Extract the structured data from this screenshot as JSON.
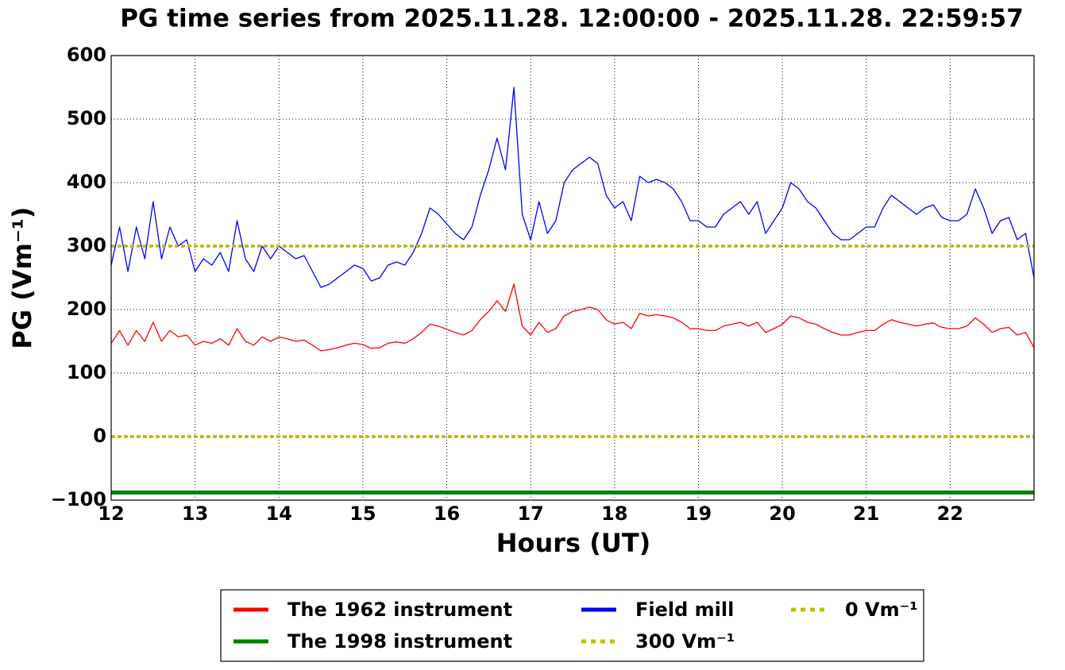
{
  "chart_data": {
    "type": "line",
    "title": "PG time series from 2025.11.28. 12:00:00 - 2025.11.28. 22:59:57",
    "xlabel": "Hours (UT)",
    "ylabel": "PG (Vm⁻¹)",
    "xlim": [
      12,
      23
    ],
    "ylim": [
      -100,
      600
    ],
    "xticks": [
      12,
      13,
      14,
      15,
      16,
      17,
      18,
      19,
      20,
      21,
      22
    ],
    "yticks": [
      {
        "value": -100,
        "label": "−100"
      },
      0,
      100,
      200,
      300,
      400,
      500,
      600
    ],
    "grid": true,
    "legend": "lower center",
    "x": [
      12.0,
      12.1,
      12.2,
      12.3,
      12.4,
      12.5,
      12.6,
      12.7,
      12.8,
      12.9,
      13.0,
      13.1,
      13.2,
      13.3,
      13.4,
      13.5,
      13.6,
      13.7,
      13.8,
      13.9,
      14.0,
      14.1,
      14.2,
      14.3,
      14.4,
      14.5,
      14.6,
      14.7,
      14.8,
      14.9,
      15.0,
      15.1,
      15.2,
      15.3,
      15.4,
      15.5,
      15.6,
      15.7,
      15.8,
      15.9,
      16.0,
      16.1,
      16.2,
      16.3,
      16.4,
      16.5,
      16.6,
      16.7,
      16.8,
      16.9,
      17.0,
      17.1,
      17.2,
      17.3,
      17.4,
      17.5,
      17.6,
      17.7,
      17.8,
      17.9,
      18.0,
      18.1,
      18.2,
      18.3,
      18.4,
      18.5,
      18.6,
      18.7,
      18.8,
      18.9,
      19.0,
      19.1,
      19.2,
      19.3,
      19.4,
      19.5,
      19.6,
      19.7,
      19.8,
      19.9,
      20.0,
      20.1,
      20.2,
      20.3,
      20.4,
      20.5,
      20.6,
      20.7,
      20.8,
      20.9,
      21.0,
      21.1,
      21.2,
      21.3,
      21.4,
      21.5,
      21.6,
      21.7,
      21.8,
      21.9,
      22.0,
      22.1,
      22.2,
      22.3,
      22.4,
      22.5,
      22.6,
      22.7,
      22.8,
      22.9,
      23.0
    ],
    "series": [
      {
        "name": "The 1962 instrument",
        "color": "#ff0000",
        "values": [
          147,
          167,
          144,
          167,
          150,
          180,
          150,
          167,
          157,
          160,
          144,
          150,
          147,
          154,
          144,
          170,
          150,
          144,
          157,
          150,
          157,
          154,
          150,
          152,
          144,
          135,
          137,
          140,
          144,
          147,
          145,
          139,
          140,
          147,
          149,
          147,
          154,
          164,
          177,
          174,
          169,
          164,
          160,
          167,
          184,
          197,
          214,
          197,
          240,
          174,
          160,
          180,
          164,
          170,
          190,
          197,
          200,
          204,
          200,
          184,
          177,
          180,
          170,
          194,
          190,
          192,
          190,
          187,
          180,
          170,
          170,
          167,
          167,
          174,
          177,
          180,
          174,
          180,
          164,
          170,
          177,
          190,
          187,
          180,
          177,
          170,
          164,
          160,
          160,
          164,
          167,
          167,
          177,
          184,
          180,
          177,
          174,
          177,
          179,
          172,
          170,
          170,
          174,
          187,
          177,
          164,
          170,
          172,
          160,
          164,
          140
        ]
      },
      {
        "name": "The 1998 instrument",
        "color": "#008000",
        "x": [
          12,
          23
        ],
        "values": [
          -88,
          -88
        ]
      },
      {
        "name": "Field mill",
        "color": "#0000ff",
        "values": [
          270,
          330,
          260,
          330,
          280,
          370,
          280,
          330,
          300,
          310,
          260,
          280,
          270,
          290,
          260,
          340,
          280,
          260,
          300,
          280,
          300,
          290,
          280,
          285,
          260,
          235,
          240,
          250,
          260,
          270,
          265,
          245,
          250,
          270,
          275,
          270,
          290,
          320,
          360,
          350,
          335,
          320,
          310,
          330,
          380,
          420,
          470,
          420,
          550,
          350,
          310,
          370,
          320,
          340,
          400,
          420,
          430,
          440,
          430,
          380,
          360,
          370,
          340,
          410,
          400,
          405,
          400,
          390,
          370,
          340,
          340,
          330,
          330,
          350,
          360,
          370,
          350,
          370,
          320,
          340,
          360,
          400,
          390,
          370,
          360,
          340,
          320,
          310,
          310,
          320,
          330,
          330,
          360,
          380,
          370,
          360,
          350,
          360,
          365,
          345,
          340,
          340,
          350,
          390,
          360,
          320,
          340,
          345,
          310,
          320,
          250
        ]
      },
      {
        "name": "300 Vm⁻¹",
        "color": "#bfbf00",
        "dashed": true,
        "x": [
          12,
          23
        ],
        "values": [
          300,
          300
        ]
      },
      {
        "name": "0 Vm⁻¹",
        "color": "#bfbf00",
        "dashed": true,
        "x": [
          12,
          23
        ],
        "values": [
          0,
          0
        ]
      }
    ]
  }
}
